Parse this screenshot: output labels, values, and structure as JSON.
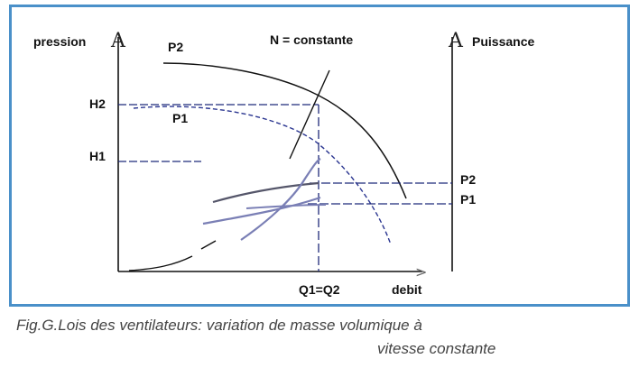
{
  "diagram": {
    "header": "N = constante",
    "left_axis": {
      "label": "pression",
      "glyph": "A"
    },
    "right_axis": {
      "label": "Puissance",
      "glyph": "A"
    },
    "x_axis": {
      "label": "debit",
      "arrow": ">"
    },
    "pressure_curves": {
      "p2": "P2",
      "p1": "P1"
    },
    "pressure_levels": {
      "h2": "H2",
      "h1": "H1"
    },
    "power_levels": {
      "p2": "P2",
      "p1": "P1"
    },
    "operating_point": "Q1=Q2"
  },
  "caption": {
    "line1_prefix": "Fig.G.",
    "line1_rest": "Lois des ventilateurs: variation de masse volumique à",
    "line2": "vitesse constante"
  },
  "colors": {
    "frame": "#4a90c9",
    "guide_lines": "#1f2a7a",
    "power_curves": "#7a7fb5",
    "curve_p2": "#111111",
    "curve_p1": "#2a3590"
  }
}
